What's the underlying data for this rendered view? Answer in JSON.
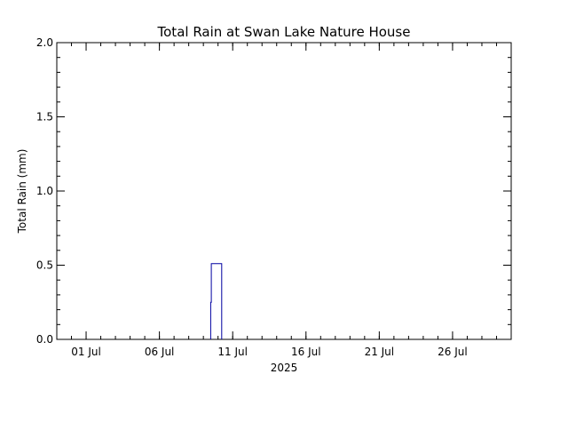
{
  "chart_data": {
    "type": "line",
    "title": "Total Rain at Swan Lake Nature House",
    "ylabel": "Total Rain (mm)",
    "xlabel": "2025",
    "x_range": [
      "2025-06-29",
      "2025-07-30"
    ],
    "ylim": [
      0,
      2.0
    ],
    "y_ticks": [
      "0.0",
      "0.5",
      "1.0",
      "1.5",
      "2.0"
    ],
    "y_tick_values": [
      0,
      0.5,
      1.0,
      1.5,
      2.0
    ],
    "x_ticks": [
      {
        "label": "01 Jul",
        "date": "2025-07-01"
      },
      {
        "label": "06 Jul",
        "date": "2025-07-06"
      },
      {
        "label": "11 Jul",
        "date": "2025-07-11"
      },
      {
        "label": "16 Jul",
        "date": "2025-07-16"
      },
      {
        "label": "21 Jul",
        "date": "2025-07-21"
      },
      {
        "label": "26 Jul",
        "date": "2025-07-26"
      }
    ],
    "series": [
      {
        "color": "#0000a0",
        "points": [
          {
            "x": "2025-07-09 12:00",
            "y": 0.0
          },
          {
            "x": "2025-07-09 12:00",
            "y": 0.25
          },
          {
            "x": "2025-07-09 13:00",
            "y": 0.25
          },
          {
            "x": "2025-07-09 13:00",
            "y": 0.51
          },
          {
            "x": "2025-07-10 06:00",
            "y": 0.51
          },
          {
            "x": "2025-07-10 06:00",
            "y": 0.0
          }
        ]
      }
    ],
    "grid": false
  }
}
